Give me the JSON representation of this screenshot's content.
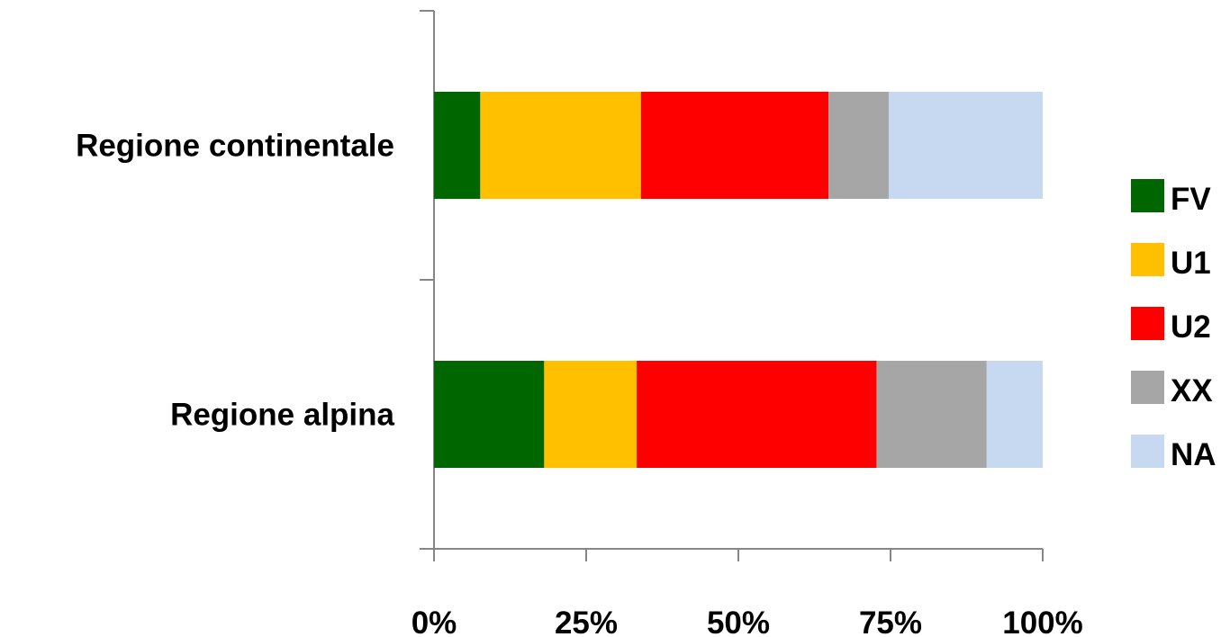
{
  "chart_data": {
    "type": "bar",
    "orientation": "horizontal",
    "stacked": "percent",
    "categories": [
      "Regione continentale",
      "Regione alpina"
    ],
    "series": [
      {
        "name": "FV",
        "color": "#006600",
        "values": [
          7.6,
          18.1
        ]
      },
      {
        "name": "U1",
        "color": "#FFC000",
        "values": [
          26.4,
          15.2
        ]
      },
      {
        "name": "U2",
        "color": "#FF0000",
        "values": [
          30.8,
          39.4
        ]
      },
      {
        "name": "XX",
        "color": "#A6A6A6",
        "values": [
          9.9,
          18.1
        ]
      },
      {
        "name": "NA",
        "color": "#C6D9F1",
        "values": [
          25.3,
          9.2
        ]
      }
    ],
    "x_ticks": [
      "0%",
      "25%",
      "50%",
      "75%",
      "100%"
    ],
    "xlim": [
      0,
      100
    ],
    "grid": false,
    "legend_position": "right"
  }
}
